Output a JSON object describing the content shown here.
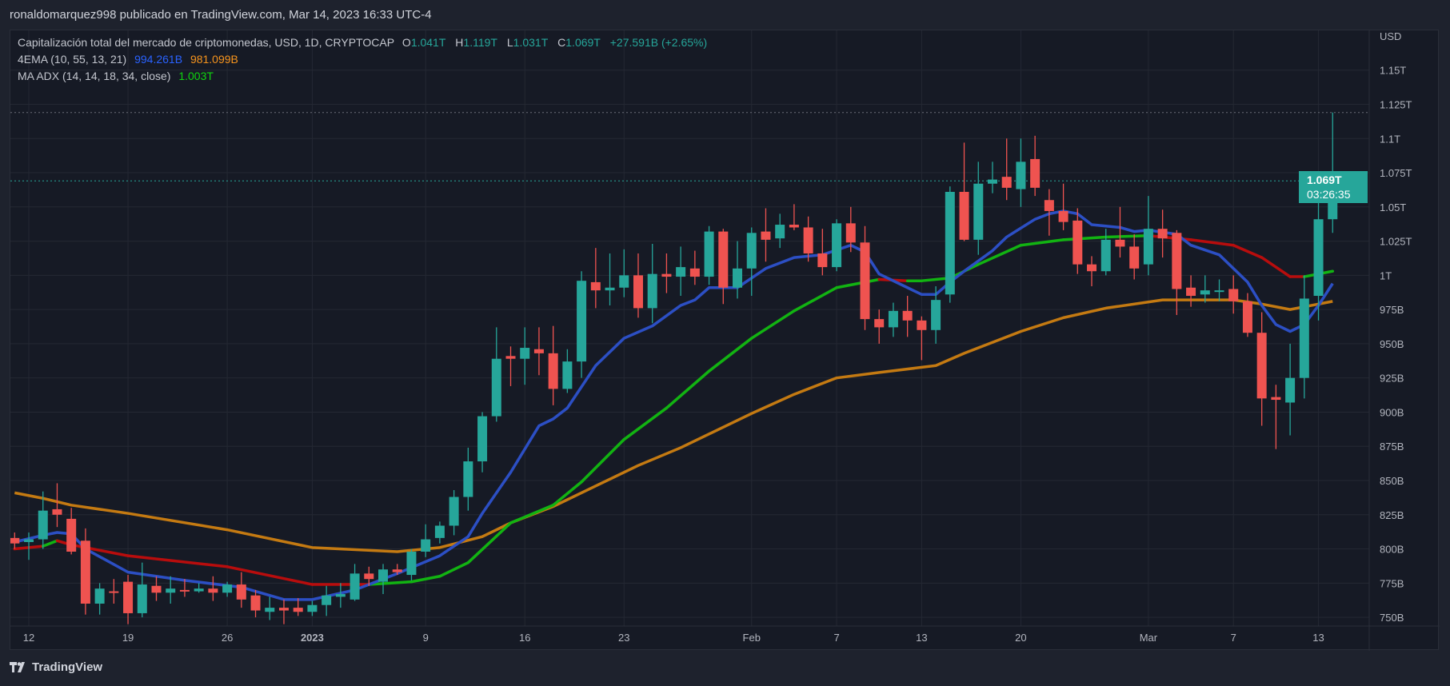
{
  "header": {
    "publisher_line": "ronaldomarquez998 publicado en TradingView.com, Mar 14, 2023 16:33 UTC-4"
  },
  "legend": {
    "symbol": "Capitalización total del mercado de criptomonedas, USD, 1D, CRYPTOCAP",
    "o_label": "O",
    "o": "1.041T",
    "h_label": "H",
    "h": "1.119T",
    "l_label": "L",
    "l": "1.031T",
    "c_label": "C",
    "c": "1.069T",
    "change": "+27.591B (+2.65%)",
    "ema_name": "4EMA (10, 55, 13, 21)",
    "ema_fast": "994.261B",
    "ema_slow": "981.099B",
    "adx_name": "MA ADX (14, 14, 18, 34, close)",
    "adx_value": "1.003T"
  },
  "price_axis": {
    "currency": "USD",
    "ticks": [
      {
        "v": 1150,
        "label": "1.15T"
      },
      {
        "v": 1125,
        "label": "1.125T"
      },
      {
        "v": 1100,
        "label": "1.1T"
      },
      {
        "v": 1075,
        "label": "1.075T"
      },
      {
        "v": 1050,
        "label": "1.05T"
      },
      {
        "v": 1025,
        "label": "1.025T"
      },
      {
        "v": 1000,
        "label": "1T"
      },
      {
        "v": 975,
        "label": "975B"
      },
      {
        "v": 950,
        "label": "950B"
      },
      {
        "v": 925,
        "label": "925B"
      },
      {
        "v": 900,
        "label": "900B"
      },
      {
        "v": 875,
        "label": "875B"
      },
      {
        "v": 850,
        "label": "850B"
      },
      {
        "v": 825,
        "label": "825B"
      },
      {
        "v": 800,
        "label": "800B"
      },
      {
        "v": 775,
        "label": "775B"
      },
      {
        "v": 750,
        "label": "750B"
      }
    ],
    "last_price": "1.069T",
    "countdown": "03:26:35",
    "last_value": 1069,
    "high_value": 1119
  },
  "time_axis": {
    "ticks": [
      {
        "i": 1,
        "label": "12"
      },
      {
        "i": 8,
        "label": "19"
      },
      {
        "i": 15,
        "label": "26"
      },
      {
        "i": 21,
        "label": "2023",
        "bold": true
      },
      {
        "i": 29,
        "label": "9"
      },
      {
        "i": 36,
        "label": "16"
      },
      {
        "i": 43,
        "label": "23"
      },
      {
        "i": 52,
        "label": "Feb"
      },
      {
        "i": 58,
        "label": "7"
      },
      {
        "i": 64,
        "label": "13"
      },
      {
        "i": 71,
        "label": "20"
      },
      {
        "i": 80,
        "label": "Mar"
      },
      {
        "i": 86,
        "label": "7"
      },
      {
        "i": 92,
        "label": "13"
      }
    ]
  },
  "footer": {
    "brand": "TradingView"
  },
  "colors": {
    "up": "#26a69a",
    "down": "#ef5350",
    "ema_fast": "#2c4fc4",
    "ema_slow": "#c47a12",
    "adx_up": "#12b312",
    "adx_down": "#b80d0d"
  },
  "chart_data": {
    "type": "candlestick",
    "unit": "B USD",
    "ylim": [
      745,
      1160
    ],
    "ohlc": [
      [
        808,
        812,
        800,
        804
      ],
      [
        805,
        812,
        792,
        807
      ],
      [
        807,
        842,
        800,
        828
      ],
      [
        829,
        848,
        816,
        825
      ],
      [
        822,
        830,
        796,
        798
      ],
      [
        806,
        815,
        752,
        760
      ],
      [
        760,
        775,
        752,
        771
      ],
      [
        769,
        778,
        760,
        768
      ],
      [
        776,
        781,
        745,
        753
      ],
      [
        753,
        790,
        750,
        774
      ],
      [
        773,
        780,
        762,
        768
      ],
      [
        768,
        780,
        760,
        771
      ],
      [
        770,
        778,
        765,
        769
      ],
      [
        769,
        775,
        768,
        771
      ],
      [
        771,
        780,
        762,
        768
      ],
      [
        768,
        776,
        765,
        774
      ],
      [
        774,
        783,
        757,
        763
      ],
      [
        766,
        770,
        750,
        755
      ],
      [
        754,
        765,
        748,
        757
      ],
      [
        757,
        763,
        745,
        755
      ],
      [
        757,
        764,
        751,
        754
      ],
      [
        754,
        762,
        751,
        759
      ],
      [
        759,
        773,
        751,
        766
      ],
      [
        765,
        775,
        757,
        767
      ],
      [
        763,
        789,
        762,
        782
      ],
      [
        782,
        787,
        773,
        778
      ],
      [
        776,
        789,
        767,
        785
      ],
      [
        785,
        789,
        781,
        783
      ],
      [
        781,
        800,
        777,
        798
      ],
      [
        798,
        818,
        794,
        807
      ],
      [
        808,
        820,
        804,
        817
      ],
      [
        817,
        843,
        810,
        838
      ],
      [
        838,
        874,
        828,
        864
      ],
      [
        864,
        900,
        856,
        897
      ],
      [
        897,
        962,
        893,
        939
      ],
      [
        941,
        948,
        919,
        939
      ],
      [
        939,
        962,
        920,
        947
      ],
      [
        946,
        962,
        927,
        943
      ],
      [
        943,
        963,
        905,
        917
      ],
      [
        917,
        946,
        914,
        937
      ],
      [
        937,
        1003,
        925,
        996
      ],
      [
        995,
        1020,
        976,
        989
      ],
      [
        989,
        1016,
        978,
        991
      ],
      [
        991,
        1019,
        984,
        1000
      ],
      [
        1000,
        1016,
        969,
        976
      ],
      [
        976,
        1023,
        965,
        1001
      ],
      [
        1001,
        1016,
        987,
        999
      ],
      [
        999,
        1021,
        985,
        1006
      ],
      [
        1005,
        1018,
        993,
        999
      ],
      [
        999,
        1036,
        993,
        1032
      ],
      [
        1032,
        1034,
        979,
        991
      ],
      [
        991,
        1025,
        983,
        1005
      ],
      [
        1005,
        1035,
        985,
        1031
      ],
      [
        1032,
        1049,
        1010,
        1026
      ],
      [
        1027,
        1045,
        1020,
        1037
      ],
      [
        1037,
        1052,
        1033,
        1035
      ],
      [
        1035,
        1043,
        1010,
        1016
      ],
      [
        1016,
        1034,
        1000,
        1006
      ],
      [
        1006,
        1041,
        1003,
        1038
      ],
      [
        1038,
        1050,
        1017,
        1024
      ],
      [
        1024,
        1036,
        960,
        968
      ],
      [
        968,
        975,
        950,
        962
      ],
      [
        962,
        980,
        955,
        974
      ],
      [
        974,
        985,
        955,
        967
      ],
      [
        967,
        970,
        938,
        960
      ],
      [
        960,
        992,
        950,
        982
      ],
      [
        986,
        1065,
        980,
        1061
      ],
      [
        1061,
        1097,
        1025,
        1026
      ],
      [
        1026,
        1083,
        1015,
        1067
      ],
      [
        1067,
        1083,
        1060,
        1070
      ],
      [
        1072,
        1100,
        1055,
        1064
      ],
      [
        1063,
        1100,
        1050,
        1083
      ],
      [
        1085,
        1102,
        1058,
        1064
      ],
      [
        1055,
        1063,
        1029,
        1047
      ],
      [
        1047,
        1067,
        1033,
        1039
      ],
      [
        1040,
        1049,
        1001,
        1008
      ],
      [
        1008,
        1014,
        992,
        1003
      ],
      [
        1003,
        1034,
        1000,
        1026
      ],
      [
        1026,
        1050,
        1013,
        1021
      ],
      [
        1021,
        1030,
        997,
        1005
      ],
      [
        1008,
        1058,
        1000,
        1034
      ],
      [
        1034,
        1048,
        1013,
        1027
      ],
      [
        1031,
        1033,
        971,
        990
      ],
      [
        991,
        1000,
        977,
        985
      ],
      [
        986,
        1000,
        980,
        989
      ],
      [
        989,
        997,
        981,
        989
      ],
      [
        990,
        1000,
        972,
        981
      ],
      [
        981,
        987,
        955,
        958
      ],
      [
        958,
        973,
        890,
        910
      ],
      [
        911,
        920,
        873,
        909
      ],
      [
        907,
        950,
        883,
        925
      ],
      [
        925,
        1000,
        910,
        983
      ],
      [
        985,
        1058,
        967,
        1041
      ],
      [
        1041,
        1119,
        1031,
        1069
      ]
    ],
    "ema_fast": [
      [
        0,
        805
      ],
      [
        2,
        810
      ],
      [
        3,
        812
      ],
      [
        4,
        811
      ],
      [
        5,
        800
      ],
      [
        8,
        783
      ],
      [
        12,
        777
      ],
      [
        16,
        772
      ],
      [
        19,
        763
      ],
      [
        21,
        763
      ],
      [
        24,
        770
      ],
      [
        27,
        782
      ],
      [
        30,
        795
      ],
      [
        32,
        809
      ],
      [
        33,
        826
      ],
      [
        35,
        856
      ],
      [
        37,
        890
      ],
      [
        38,
        895
      ],
      [
        39,
        903
      ],
      [
        41,
        934
      ],
      [
        43,
        954
      ],
      [
        45,
        963
      ],
      [
        47,
        978
      ],
      [
        48,
        982
      ],
      [
        49,
        991
      ],
      [
        51,
        991
      ],
      [
        53,
        1005
      ],
      [
        55,
        1013
      ],
      [
        57,
        1015
      ],
      [
        59,
        1022
      ],
      [
        60,
        1017
      ],
      [
        61,
        1001
      ],
      [
        63,
        991
      ],
      [
        64,
        986
      ],
      [
        65,
        986
      ],
      [
        66,
        995
      ],
      [
        67,
        1003
      ],
      [
        69,
        1018
      ],
      [
        70,
        1028
      ],
      [
        72,
        1041
      ],
      [
        73,
        1045
      ],
      [
        74,
        1047
      ],
      [
        75,
        1045
      ],
      [
        76,
        1037
      ],
      [
        77,
        1036
      ],
      [
        78,
        1035
      ],
      [
        79,
        1032
      ],
      [
        80,
        1033
      ],
      [
        82,
        1030
      ],
      [
        83,
        1022
      ],
      [
        85,
        1015
      ],
      [
        87,
        995
      ],
      [
        88,
        978
      ],
      [
        89,
        964
      ],
      [
        90,
        959
      ],
      [
        91,
        964
      ],
      [
        92,
        978
      ],
      [
        93,
        994
      ]
    ],
    "ema_slow": [
      [
        0,
        841
      ],
      [
        2,
        837
      ],
      [
        4,
        832
      ],
      [
        8,
        826
      ],
      [
        15,
        814
      ],
      [
        21,
        801
      ],
      [
        27,
        798
      ],
      [
        30,
        801
      ],
      [
        33,
        809
      ],
      [
        35,
        819
      ],
      [
        38,
        831
      ],
      [
        41,
        846
      ],
      [
        44,
        861
      ],
      [
        47,
        874
      ],
      [
        49,
        884
      ],
      [
        52,
        899
      ],
      [
        55,
        913
      ],
      [
        58,
        925
      ],
      [
        61,
        929
      ],
      [
        65,
        934
      ],
      [
        67,
        943
      ],
      [
        71,
        959
      ],
      [
        74,
        969
      ],
      [
        77,
        976
      ],
      [
        81,
        982
      ],
      [
        86,
        982
      ],
      [
        88,
        979
      ],
      [
        90,
        975
      ],
      [
        93,
        981
      ]
    ],
    "ma_adx": [
      [
        0,
        800,
        "down"
      ],
      [
        2,
        802,
        "down"
      ],
      [
        3,
        806,
        "up"
      ],
      [
        4,
        803,
        "down"
      ],
      [
        8,
        795,
        "down"
      ],
      [
        15,
        787,
        "down"
      ],
      [
        21,
        774,
        "down"
      ],
      [
        25,
        774,
        "down"
      ],
      [
        28,
        776,
        "up"
      ],
      [
        30,
        780,
        "up"
      ],
      [
        32,
        790,
        "up"
      ],
      [
        35,
        819,
        "up"
      ],
      [
        38,
        832,
        "up"
      ],
      [
        40,
        849,
        "up"
      ],
      [
        43,
        880,
        "up"
      ],
      [
        46,
        903,
        "up"
      ],
      [
        49,
        930,
        "up"
      ],
      [
        52,
        954,
        "up"
      ],
      [
        55,
        974,
        "up"
      ],
      [
        58,
        991,
        "up"
      ],
      [
        61,
        997,
        "up"
      ],
      [
        63,
        996,
        "down"
      ],
      [
        64,
        996,
        "up"
      ],
      [
        66,
        998,
        "up"
      ],
      [
        68,
        1008,
        "up"
      ],
      [
        71,
        1022,
        "up"
      ],
      [
        74,
        1026,
        "up"
      ],
      [
        77,
        1028,
        "up"
      ],
      [
        80,
        1029,
        "up"
      ],
      [
        83,
        1026,
        "down"
      ],
      [
        86,
        1022,
        "down"
      ],
      [
        88,
        1013,
        "down"
      ],
      [
        90,
        999,
        "down"
      ],
      [
        91,
        999,
        "down"
      ],
      [
        93,
        1003,
        "up"
      ]
    ]
  }
}
